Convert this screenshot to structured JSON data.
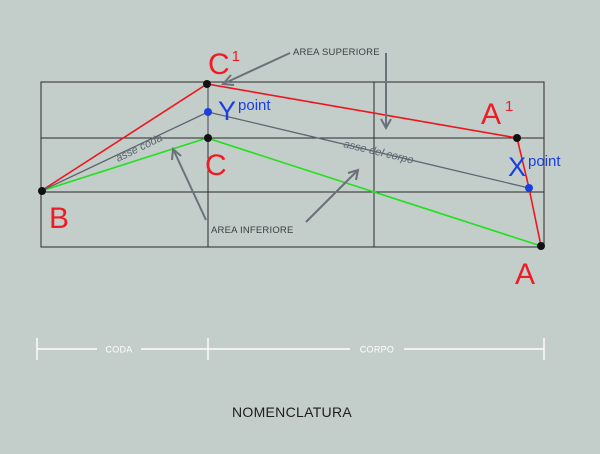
{
  "labels": {
    "c1_letter": "C",
    "c1_super": "1",
    "a1_letter": "A",
    "a1_super": "1",
    "a": "A",
    "b": "B",
    "c": "C",
    "y_letter": "Y",
    "y_super": "point",
    "x_letter": "X",
    "x_super": "point"
  },
  "callouts": {
    "area_superiore": "AREA SUPERIORE",
    "area_inferiore": "AREA INFERIORE"
  },
  "axes": {
    "asse_coda": "asse coda",
    "asse_corpo": "asse del corpo"
  },
  "scale": {
    "coda": "CODA",
    "corpo": "CORPO"
  },
  "title": "NOMENCLATURA",
  "colors": {
    "background": "#c3cdc9",
    "upper_outline": "#f0141e",
    "lower_outline": "#22e01e",
    "points": "#1a3fe0",
    "vertices": "#111111"
  }
}
